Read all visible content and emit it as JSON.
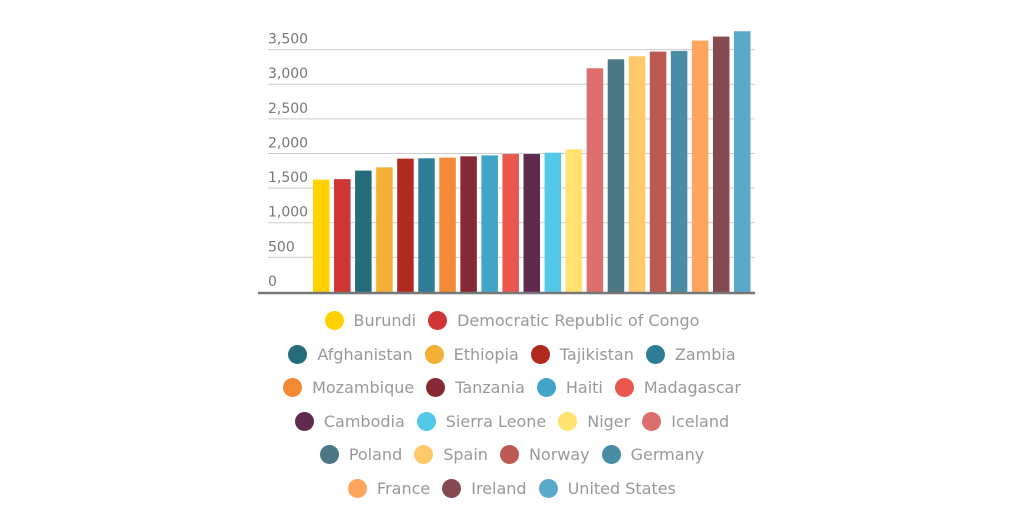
{
  "chart_data": {
    "type": "bar",
    "title": "",
    "xlabel": "",
    "ylabel": "",
    "ylim": [
      0,
      3750
    ],
    "yticks": [
      0,
      500,
      1000,
      1500,
      2000,
      2500,
      3000,
      3500
    ],
    "ytick_labels": [
      "0",
      "500",
      "1,000",
      "1,500",
      "2,000",
      "2,500",
      "3,000",
      "3,500"
    ],
    "grid": true,
    "legend_placement": "bottom",
    "categories": [
      "Burundi",
      "Democratic Republic of Congo",
      "Afghanistan",
      "Ethiopia",
      "Tajikistan",
      "Zambia",
      "Mozambique",
      "Tanzania",
      "Haiti",
      "Madagascar",
      "Cambodia",
      "Sierra Leone",
      "Niger",
      "Iceland",
      "Poland",
      "Spain",
      "Norway",
      "Germany",
      "France",
      "Ireland",
      "United States"
    ],
    "values": [
      1623,
      1630,
      1753,
      1800,
      1926,
      1930,
      1940,
      1959,
      1973,
      1992,
      1992,
      2011,
      2059,
      3230,
      3360,
      3404,
      3471,
      3481,
      3630,
      3688,
      3765
    ],
    "colors": [
      "#ffd200",
      "#cf3534",
      "#266b7a",
      "#f2b035",
      "#b02a20",
      "#2e7c96",
      "#f28a35",
      "#852a33",
      "#42a4c8",
      "#e8584f",
      "#5e2a4d",
      "#53c8e8",
      "#ffe36e",
      "#dc6f6d",
      "#4b7884",
      "#ffc96a",
      "#bb5a53",
      "#498ca5",
      "#ffa65e",
      "#844a50",
      "#5ba9c9"
    ]
  }
}
